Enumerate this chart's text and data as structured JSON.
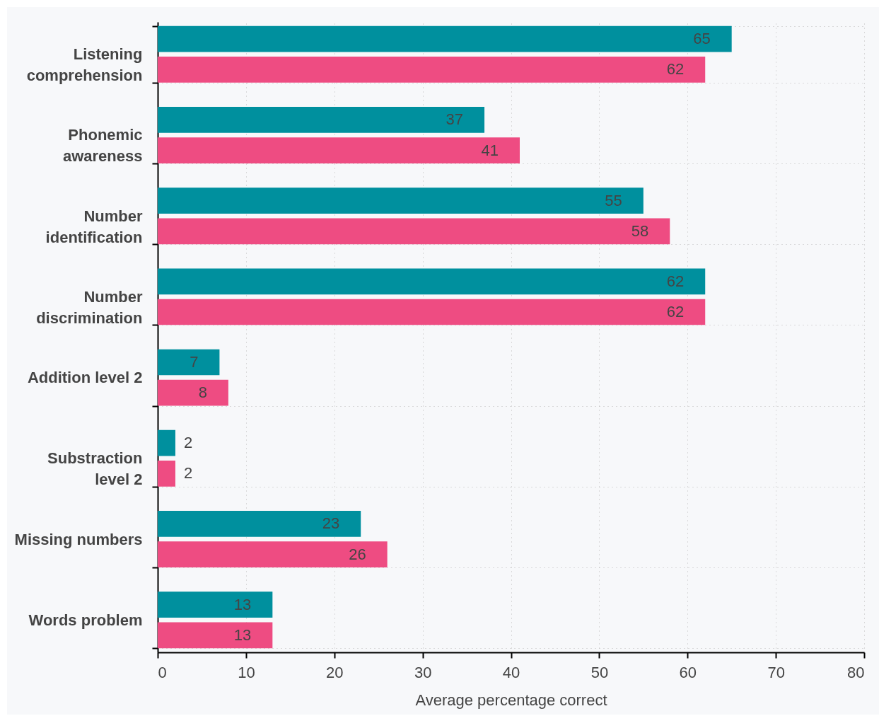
{
  "chart_data": {
    "type": "bar",
    "orientation": "horizontal",
    "xlabel": "Average percentage correct",
    "categories": [
      "Listening comprehension",
      "Phonemic awareness",
      "Number identification",
      "Number discrimination",
      "Addition level 2",
      "Substraction level 2",
      "Missing numbers",
      "Words problem"
    ],
    "series": [
      {
        "color": "#00909e",
        "values": [
          65,
          37,
          55,
          62,
          7,
          2,
          23,
          13
        ]
      },
      {
        "color": "#ee4c82",
        "values": [
          62,
          41,
          58,
          62,
          8,
          2,
          26,
          13
        ]
      }
    ],
    "xlim": [
      0,
      80
    ],
    "xticks": [
      0,
      10,
      20,
      30,
      40,
      50,
      60,
      70,
      80
    ],
    "grid": true,
    "data_labels": true,
    "legend": false
  }
}
